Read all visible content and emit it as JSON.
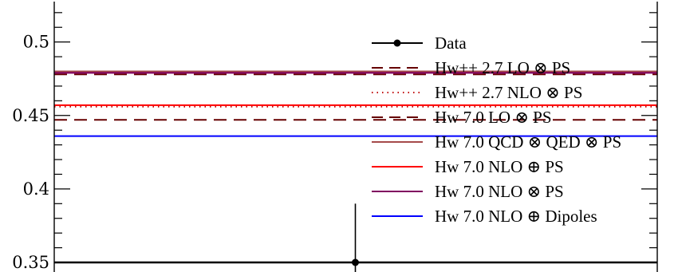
{
  "chart_data": {
    "type": "line",
    "title": "",
    "xlabel": "",
    "ylabel": "",
    "ylim": [
      0.35,
      0.5275
    ],
    "yticks": [
      0.35,
      0.4,
      0.45,
      0.5
    ],
    "ytick_labels": [
      "0.35",
      "0.4",
      "0.45",
      "0.5"
    ],
    "grid": false,
    "legend_position": "top-right",
    "data": {
      "name": "Data",
      "value": 0.35,
      "err_up": 0.39,
      "err_down": 0.34,
      "color": "#000000"
    },
    "series": [
      {
        "name": "Hw++ 2.7 LO ⊗ PS",
        "value": 0.478,
        "color": "#660000",
        "style": "dashed"
      },
      {
        "name": "Hw++ 2.7 NLO ⊗ PS",
        "value": 0.456,
        "color": "#c00000",
        "style": "dotted"
      },
      {
        "name": "Hw 7.0 LO ⊗ PS",
        "value": 0.447,
        "color": "#660000",
        "style": "dashed"
      },
      {
        "name": "Hw 7.0 QCD ⊗ QED ⊗ PS",
        "value": 0.48,
        "color": "#a54a4a",
        "style": "solid"
      },
      {
        "name": "Hw 7.0 NLO ⊕ PS",
        "value": 0.457,
        "color": "#ff0000",
        "style": "solid"
      },
      {
        "name": "Hw 7.0 NLO ⊗ PS",
        "value": 0.479,
        "color": "#800060",
        "style": "solid"
      },
      {
        "name": "Hw 7.0 NLO ⊕ Dipoles",
        "value": 0.436,
        "color": "#0000ff",
        "style": "solid"
      }
    ]
  }
}
